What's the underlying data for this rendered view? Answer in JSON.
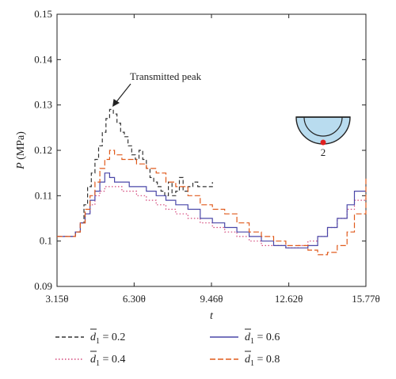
{
  "chart_data": {
    "type": "line",
    "ylabel": "P",
    "ylabel_unit": " (MPa)",
    "xlabel": "t",
    "xlim": [
      3.15,
      15.77
    ],
    "ylim": [
      0.09,
      0.15
    ],
    "x_ticks": [
      {
        "value": 3.15,
        "label": "3.15θ"
      },
      {
        "value": 6.3,
        "label": "6.30θ"
      },
      {
        "value": 9.46,
        "label": "9.46θ"
      },
      {
        "value": 12.62,
        "label": "12.62θ"
      },
      {
        "value": 15.77,
        "label": "15.77θ"
      }
    ],
    "y_ticks": [
      {
        "value": 0.09,
        "label": "0.09"
      },
      {
        "value": 0.1,
        "label": "0.1"
      },
      {
        "value": 0.11,
        "label": "0.11"
      },
      {
        "value": 0.12,
        "label": "0.12"
      },
      {
        "value": 0.13,
        "label": "0.13"
      },
      {
        "value": 0.14,
        "label": "0.14"
      },
      {
        "value": 0.15,
        "label": "0.15"
      }
    ],
    "annotation": {
      "text": "Transmitted peak",
      "x": 5.3,
      "y": 0.1285
    },
    "inset_label": "2",
    "legend": {
      "symbol": "d",
      "subscript": "1",
      "position": "bottom"
    },
    "series": [
      {
        "name": "0.2",
        "color": "#333333",
        "dash": "5,3",
        "x": [
          3.15,
          3.7,
          3.9,
          4.1,
          4.25,
          4.4,
          4.55,
          4.7,
          4.85,
          5.0,
          5.15,
          5.3,
          5.45,
          5.6,
          5.75,
          5.9,
          6.05,
          6.2,
          6.35,
          6.5,
          6.65,
          6.8,
          6.95,
          7.1,
          7.25,
          7.4,
          7.55,
          7.7,
          7.85,
          8.0,
          8.15,
          8.3,
          8.5,
          8.7,
          8.9,
          9.1,
          9.3,
          9.5
        ],
        "y": [
          0.101,
          0.101,
          0.102,
          0.104,
          0.108,
          0.112,
          0.115,
          0.118,
          0.121,
          0.124,
          0.127,
          0.129,
          0.128,
          0.126,
          0.124,
          0.123,
          0.121,
          0.119,
          0.118,
          0.12,
          0.118,
          0.116,
          0.114,
          0.113,
          0.112,
          0.111,
          0.11,
          0.113,
          0.11,
          0.111,
          0.114,
          0.111,
          0.112,
          0.113,
          0.112,
          0.112,
          0.112,
          0.113
        ]
      },
      {
        "name": "0.4",
        "color": "#d4477a",
        "dash": "1.5,2.5",
        "x": [
          3.15,
          3.7,
          3.9,
          4.1,
          4.3,
          4.5,
          4.7,
          4.9,
          5.1,
          5.3,
          5.5,
          5.8,
          6.1,
          6.4,
          6.8,
          7.2,
          7.6,
          8.0,
          8.5,
          9.0,
          9.5,
          10.0,
          10.5,
          11.0,
          11.5,
          12.0,
          12.5,
          13.0,
          13.4,
          13.8,
          14.2,
          14.6,
          15.0,
          15.3,
          15.77
        ],
        "y": [
          0.101,
          0.101,
          0.102,
          0.104,
          0.106,
          0.108,
          0.11,
          0.111,
          0.112,
          0.112,
          0.112,
          0.111,
          0.111,
          0.11,
          0.109,
          0.108,
          0.107,
          0.106,
          0.105,
          0.104,
          0.103,
          0.102,
          0.101,
          0.1,
          0.099,
          0.099,
          0.0985,
          0.099,
          0.1,
          0.101,
          0.103,
          0.105,
          0.107,
          0.109,
          0.11
        ]
      },
      {
        "name": "0.6",
        "color": "#4a47a8",
        "dash": "",
        "x": [
          3.15,
          3.7,
          3.9,
          4.1,
          4.3,
          4.5,
          4.7,
          4.9,
          5.1,
          5.3,
          5.5,
          5.8,
          6.1,
          6.4,
          6.8,
          7.2,
          7.6,
          8.0,
          8.5,
          9.0,
          9.5,
          10.0,
          10.5,
          11.0,
          11.5,
          12.0,
          12.5,
          13.0,
          13.4,
          13.8,
          14.2,
          14.6,
          15.0,
          15.3,
          15.77
        ],
        "y": [
          0.101,
          0.101,
          0.102,
          0.104,
          0.106,
          0.109,
          0.111,
          0.113,
          0.115,
          0.114,
          0.113,
          0.113,
          0.112,
          0.112,
          0.111,
          0.11,
          0.109,
          0.108,
          0.107,
          0.105,
          0.104,
          0.103,
          0.102,
          0.101,
          0.1,
          0.099,
          0.0985,
          0.0985,
          0.099,
          0.101,
          0.103,
          0.105,
          0.108,
          0.111,
          0.111
        ]
      },
      {
        "name": "0.8",
        "color": "#e05a1c",
        "dash": "7,3",
        "x": [
          3.15,
          3.7,
          3.9,
          4.1,
          4.3,
          4.5,
          4.7,
          4.9,
          5.1,
          5.3,
          5.5,
          5.8,
          6.1,
          6.4,
          6.8,
          7.2,
          7.6,
          8.0,
          8.5,
          9.0,
          9.5,
          10.0,
          10.5,
          11.0,
          11.5,
          12.0,
          12.5,
          13.0,
          13.4,
          13.8,
          14.2,
          14.6,
          15.0,
          15.3,
          15.77
        ],
        "y": [
          0.101,
          0.101,
          0.102,
          0.104,
          0.107,
          0.11,
          0.113,
          0.116,
          0.118,
          0.12,
          0.119,
          0.118,
          0.118,
          0.117,
          0.116,
          0.115,
          0.113,
          0.112,
          0.11,
          0.108,
          0.107,
          0.106,
          0.104,
          0.102,
          0.101,
          0.1,
          0.099,
          0.099,
          0.098,
          0.097,
          0.0975,
          0.099,
          0.102,
          0.106,
          0.114
        ]
      }
    ]
  }
}
